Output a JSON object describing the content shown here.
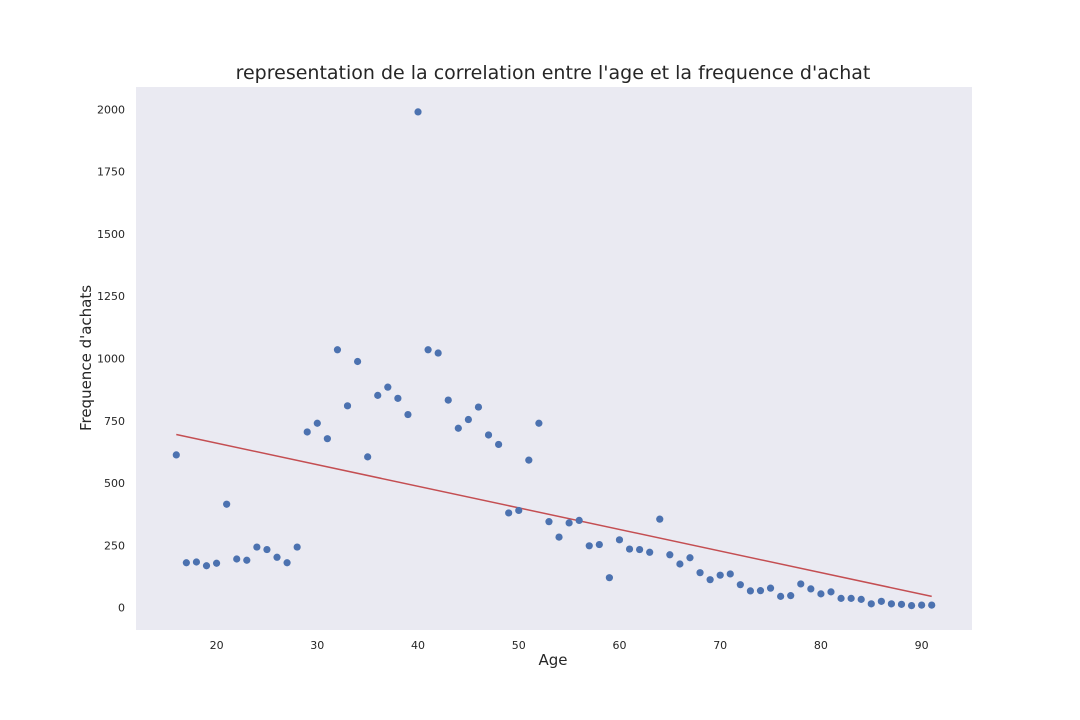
{
  "chart_data": {
    "type": "scatter",
    "title": "representation de la correlation entre l'age et la frequence d'achat",
    "xlabel": "Age",
    "ylabel": "Frequence d'achats",
    "xlim": [
      12,
      95
    ],
    "ylim": [
      -90,
      2090
    ],
    "xticks": [
      20,
      30,
      40,
      50,
      60,
      70,
      80,
      90
    ],
    "yticks": [
      0,
      250,
      500,
      750,
      1000,
      1250,
      1500,
      1750,
      2000
    ],
    "grid": false,
    "background_color": "#eaeaf2",
    "series": [
      {
        "kind": "scatter",
        "color": "#4c72b0",
        "x": [
          16,
          17,
          18,
          19,
          20,
          21,
          22,
          23,
          24,
          25,
          26,
          27,
          28,
          29,
          30,
          31,
          32,
          33,
          34,
          35,
          36,
          37,
          38,
          39,
          40,
          41,
          42,
          43,
          44,
          45,
          46,
          47,
          48,
          49,
          50,
          51,
          52,
          53,
          54,
          55,
          56,
          57,
          58,
          59,
          60,
          61,
          62,
          63,
          64,
          65,
          66,
          67,
          68,
          69,
          70,
          71,
          72,
          73,
          74,
          75,
          76,
          77,
          78,
          79,
          80,
          81,
          82,
          83,
          84,
          85,
          86,
          87,
          88,
          89,
          90,
          91
        ],
        "y": [
          613,
          180,
          183,
          168,
          178,
          415,
          195,
          190,
          243,
          233,
          202,
          180,
          243,
          705,
          740,
          678,
          1035,
          810,
          988,
          605,
          852,
          885,
          840,
          775,
          1990,
          1035,
          1022,
          833,
          720,
          755,
          805,
          693,
          655,
          380,
          390,
          592,
          740,
          345,
          283,
          340,
          350,
          248,
          253,
          120,
          272,
          235,
          233,
          222,
          355,
          212,
          175,
          200,
          140,
          112,
          130,
          135,
          92,
          67,
          68,
          78,
          45,
          48,
          95,
          75,
          55,
          63,
          37,
          37,
          33,
          15,
          25,
          15,
          13,
          8,
          10,
          10
        ]
      },
      {
        "kind": "line",
        "color": "#c44e52",
        "x": [
          16,
          91
        ],
        "y": [
          695,
          45
        ]
      }
    ]
  }
}
